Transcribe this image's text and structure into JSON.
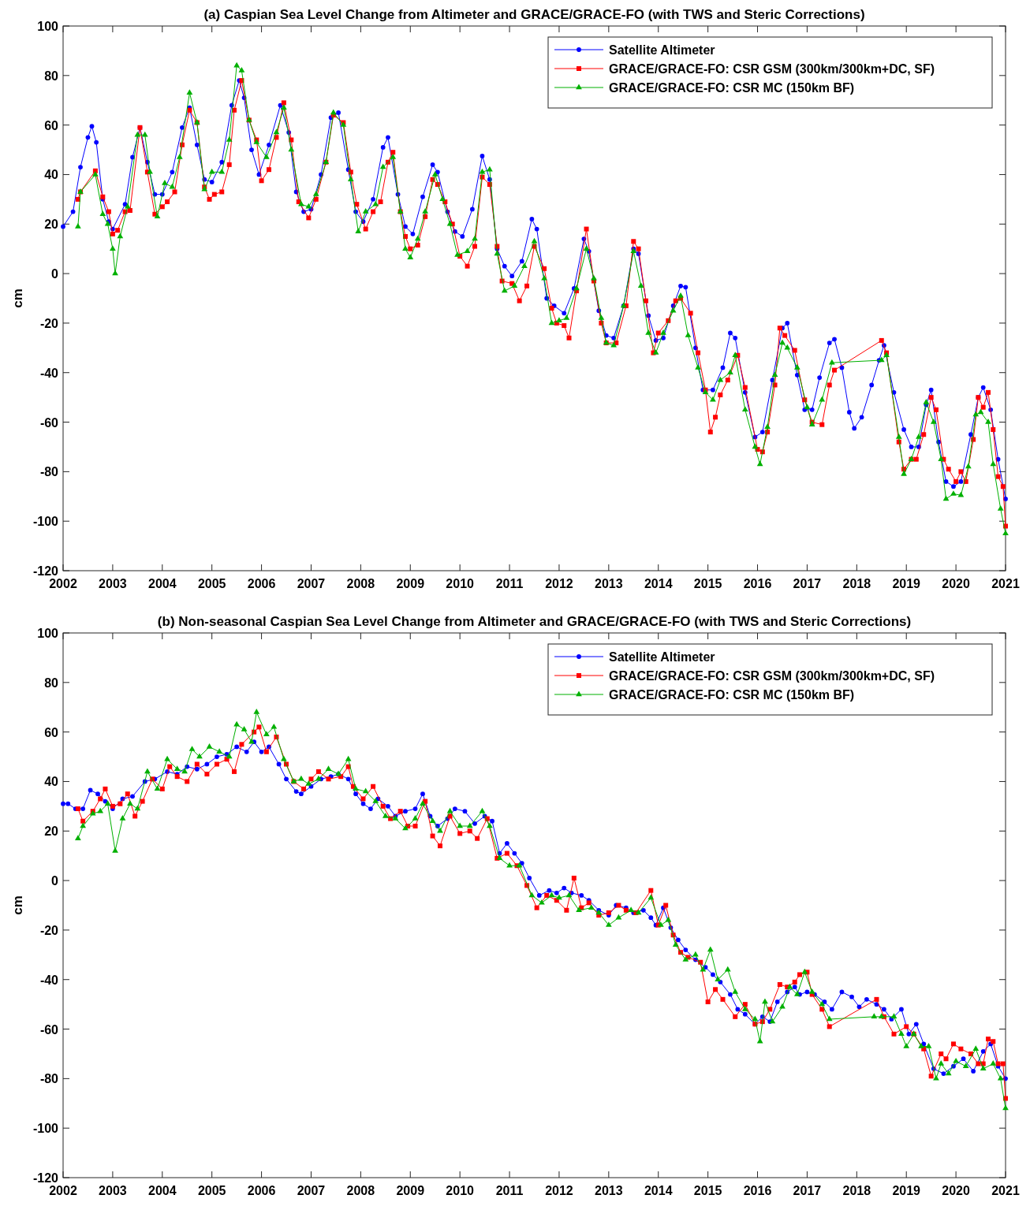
{
  "chart_data": [
    {
      "type": "line",
      "title": "(a) Caspian Sea Level Change from Altimeter and GRACE/GRACE-FO (with TWS and Steric Corrections)",
      "ylabel": "cm",
      "xlim": [
        2002,
        2021
      ],
      "xticks": [
        2002,
        2003,
        2004,
        2005,
        2006,
        2007,
        2008,
        2009,
        2010,
        2011,
        2012,
        2013,
        2014,
        2015,
        2016,
        2017,
        2018,
        2019,
        2020,
        2021
      ],
      "ylim": [
        -120,
        100
      ],
      "yticks": [
        -120,
        -100,
        -80,
        -60,
        -40,
        -20,
        0,
        20,
        40,
        60,
        80,
        100
      ],
      "grid": false,
      "legend": "top right",
      "line_style": "solid",
      "series": [
        {
          "name": "Satellite Altimeter",
          "color": "#0000ff",
          "marker": "circle",
          "x": [
            2002.0,
            2002.2,
            2002.35,
            2002.5,
            2002.58,
            2002.67,
            2002.8,
            2002.92,
            2003.0,
            2003.25,
            2003.4,
            2003.55,
            2003.7,
            2003.85,
            2004.0,
            2004.2,
            2004.4,
            2004.55,
            2004.7,
            2004.85,
            2005.0,
            2005.2,
            2005.4,
            2005.55,
            2005.65,
            2005.8,
            2005.95,
            2006.15,
            2006.38,
            2006.55,
            2006.7,
            2006.85,
            2007.0,
            2007.2,
            2007.4,
            2007.55,
            2007.75,
            2007.9,
            2008.05,
            2008.25,
            2008.45,
            2008.55,
            2008.75,
            2008.9,
            2009.05,
            2009.25,
            2009.45,
            2009.55,
            2009.75,
            2009.9,
            2010.05,
            2010.25,
            2010.45,
            2010.6,
            2010.75,
            2010.9,
            2011.05,
            2011.25,
            2011.45,
            2011.55,
            2011.75,
            2011.9,
            2012.1,
            2012.3,
            2012.5,
            2012.6,
            2012.8,
            2012.95,
            2013.1,
            2013.3,
            2013.5,
            2013.6,
            2013.8,
            2013.95,
            2014.1,
            2014.3,
            2014.45,
            2014.55,
            2014.75,
            2014.9,
            2015.1,
            2015.3,
            2015.45,
            2015.55,
            2015.75,
            2015.95,
            2016.1,
            2016.3,
            2016.5,
            2016.6,
            2016.8,
            2016.95,
            2017.1,
            2017.25,
            2017.45,
            2017.55,
            2017.7,
            2017.85,
            2017.95,
            2018.1,
            2018.3,
            2018.45,
            2018.55,
            2018.75,
            2018.95,
            2019.1,
            2019.25,
            2019.4,
            2019.5,
            2019.65,
            2019.8,
            2019.95,
            2020.1,
            2020.3,
            2020.45,
            2020.55,
            2020.7,
            2020.85,
            2021.0
          ],
          "values": [
            19,
            25,
            43,
            55,
            59.5,
            53,
            30,
            21,
            18,
            28,
            47,
            59,
            45,
            32,
            32,
            41,
            59,
            67,
            52,
            38,
            37,
            45,
            68,
            78,
            71,
            50,
            40,
            52,
            68,
            57,
            33,
            25,
            26,
            40,
            63,
            65,
            42,
            25,
            21,
            30,
            51,
            55,
            32,
            19,
            16,
            31,
            44,
            41,
            25,
            17,
            15,
            26,
            47.5,
            38,
            10,
            3,
            -1,
            5,
            22,
            18,
            -10,
            -13,
            -16,
            -6,
            14,
            9,
            -15,
            -25,
            -26,
            -13,
            10,
            8,
            -17,
            -27,
            -26,
            -13,
            -5,
            -5.5,
            -30,
            -47,
            -47,
            -38,
            -24,
            -26,
            -48,
            -66,
            -64,
            -43,
            -22,
            -20,
            -41,
            -55,
            -55,
            -42,
            -28,
            -26.5,
            -38,
            -56,
            -62.5,
            -58,
            -45,
            -35,
            -29,
            -48,
            -63,
            -70,
            -70,
            -53,
            -47,
            -68,
            -84,
            -86,
            -84,
            -65,
            -50,
            -46,
            -55,
            -75,
            -91
          ]
        },
        {
          "name": "GRACE/GRACE-FO: CSR GSM (300km/300km+DC, SF)",
          "color": "#ff0000",
          "marker": "square",
          "x": [
            2002.3,
            2002.35,
            2002.65,
            2002.8,
            2002.92,
            2003.0,
            2003.1,
            2003.25,
            2003.35,
            2003.55,
            2003.7,
            2003.85,
            2004.0,
            2004.1,
            2004.25,
            2004.4,
            2004.55,
            2004.7,
            2004.85,
            2004.95,
            2005.05,
            2005.2,
            2005.35,
            2005.45,
            2005.6,
            2005.75,
            2005.9,
            2006.0,
            2006.15,
            2006.3,
            2006.45,
            2006.6,
            2006.75,
            2006.95,
            2007.1,
            2007.3,
            2007.45,
            2007.65,
            2007.8,
            2007.92,
            2008.1,
            2008.25,
            2008.4,
            2008.55,
            2008.65,
            2008.8,
            2008.9,
            2009.0,
            2009.15,
            2009.3,
            2009.45,
            2009.55,
            2009.7,
            2009.85,
            2010.0,
            2010.15,
            2010.3,
            2010.45,
            2010.6,
            2010.75,
            2010.85,
            2011.05,
            2011.2,
            2011.35,
            2011.5,
            2011.7,
            2011.85,
            2011.95,
            2012.1,
            2012.2,
            2012.35,
            2012.55,
            2012.7,
            2012.85,
            2012.95,
            2013.15,
            2013.35,
            2013.5,
            2013.6,
            2013.75,
            2013.9,
            2014.0,
            2014.2,
            2014.35,
            2014.45,
            2014.65,
            2014.8,
            2014.95,
            2015.05,
            2015.15,
            2015.25,
            2015.4,
            2015.6,
            2015.75,
            2016.0,
            2016.1,
            2016.2,
            2016.35,
            2016.45,
            2016.55,
            2016.75,
            2016.95,
            2017.1,
            2017.3,
            2017.45,
            2017.55,
            2018.5,
            2018.6,
            2018.85,
            2018.95,
            2019.1,
            2019.2,
            2019.35,
            2019.5,
            2019.6,
            2019.75,
            2019.85,
            2020.0,
            2020.1,
            2020.2,
            2020.35,
            2020.45,
            2020.55,
            2020.65,
            2020.75,
            2020.85,
            2020.95,
            2021.0
          ],
          "values": [
            30,
            33,
            41.5,
            31,
            25,
            16,
            17.5,
            25,
            25.5,
            59,
            41,
            24,
            27,
            29,
            33,
            52,
            66,
            61,
            35,
            30,
            32,
            33,
            44,
            66,
            78,
            62,
            54,
            37.5,
            42,
            55,
            69,
            54,
            29,
            22.5,
            30,
            45,
            64,
            61,
            41,
            28,
            18,
            25,
            29,
            45,
            49,
            25,
            15,
            10,
            11.5,
            23,
            38,
            36,
            29,
            20,
            7,
            3,
            11,
            39,
            36,
            11,
            -3,
            -4,
            -11,
            -5,
            11,
            2,
            -14,
            -20,
            -21,
            -26,
            -7,
            18,
            -3,
            -20,
            -28,
            -28,
            -13,
            13,
            10,
            -11,
            -32,
            -24,
            -19,
            -11,
            -10,
            -16,
            -32,
            -47,
            -64,
            -58,
            -49,
            -43,
            -33,
            -46,
            -71,
            -72,
            -64,
            -45,
            -22,
            -25,
            -31,
            -51,
            -60,
            -61,
            -45,
            -39,
            -27,
            -32,
            -68,
            -79,
            -75,
            -75,
            -65,
            -50,
            -55,
            -75,
            -79,
            -84,
            -80,
            -84,
            -67,
            -50,
            -54,
            -48,
            -63,
            -82,
            -86,
            -102
          ]
        },
        {
          "name": "GRACE/GRACE-FO: CSR MC (150km BF)",
          "color": "#00b000",
          "marker": "triangle",
          "x": [
            2002.3,
            2002.35,
            2002.65,
            2002.8,
            2002.9,
            2003.0,
            2003.05,
            2003.15,
            2003.3,
            2003.5,
            2003.65,
            2003.75,
            2003.9,
            2004.05,
            2004.2,
            2004.35,
            2004.55,
            2004.7,
            2004.85,
            2005.0,
            2005.2,
            2005.35,
            2005.5,
            2005.6,
            2005.75,
            2005.9,
            2006.1,
            2006.3,
            2006.45,
            2006.6,
            2006.8,
            2006.95,
            2007.1,
            2007.3,
            2007.45,
            2007.65,
            2007.8,
            2007.95,
            2008.1,
            2008.3,
            2008.45,
            2008.65,
            2008.8,
            2008.9,
            2009.0,
            2009.15,
            2009.3,
            2009.5,
            2009.65,
            2009.8,
            2009.95,
            2010.15,
            2010.3,
            2010.45,
            2010.6,
            2010.75,
            2010.9,
            2011.1,
            2011.3,
            2011.5,
            2011.7,
            2011.85,
            2012.0,
            2012.15,
            2012.35,
            2012.55,
            2012.7,
            2012.85,
            2012.95,
            2013.1,
            2013.3,
            2013.5,
            2013.65,
            2013.8,
            2013.95,
            2014.1,
            2014.3,
            2014.45,
            2014.6,
            2014.8,
            2014.95,
            2015.1,
            2015.25,
            2015.45,
            2015.55,
            2015.75,
            2015.95,
            2016.05,
            2016.2,
            2016.35,
            2016.5,
            2016.6,
            2016.8,
            2017.0,
            2017.1,
            2017.3,
            2017.5,
            2018.5,
            2018.6,
            2018.85,
            2018.95,
            2019.1,
            2019.25,
            2019.4,
            2019.55,
            2019.7,
            2019.8,
            2019.95,
            2020.1,
            2020.25,
            2020.4,
            2020.5,
            2020.65,
            2020.75,
            2020.9,
            2021.0
          ],
          "values": [
            19,
            33,
            40,
            24,
            20,
            10,
            0,
            15,
            27,
            56,
            56,
            41,
            23,
            36.5,
            35,
            47,
            73,
            61,
            34,
            41,
            41,
            54,
            84,
            82,
            62,
            53,
            47,
            57,
            67,
            50,
            28,
            27,
            32,
            45,
            65,
            60,
            38,
            17,
            25,
            28,
            43,
            47,
            25,
            10,
            6.5,
            14,
            25,
            40,
            30,
            20,
            7.5,
            9,
            14,
            41,
            42,
            8,
            -7,
            -5,
            3,
            13,
            -2,
            -20,
            -19,
            -18,
            -6,
            10,
            -2,
            -18,
            -28,
            -29,
            -13,
            9,
            -5,
            -24,
            -32,
            -24,
            -15,
            -9,
            -25,
            -38,
            -48,
            -51,
            -43,
            -40,
            -33,
            -55,
            -70,
            -77,
            -62,
            -41,
            -28,
            -30,
            -38,
            -54,
            -61,
            -51,
            -36,
            -35,
            -33,
            -66,
            -81,
            -75,
            -66,
            -52,
            -60,
            -75,
            -91,
            -89,
            -89.5,
            -78,
            -57,
            -56,
            -60,
            -77,
            -95,
            -105
          ]
        }
      ]
    },
    {
      "type": "line",
      "title": "(b) Non-seasonal Caspian Sea Level Change from Altimeter and GRACE/GRACE-FO (with TWS and Steric Corrections)",
      "ylabel": "cm",
      "xlim": [
        2002,
        2021
      ],
      "xticks": [
        2002,
        2003,
        2004,
        2005,
        2006,
        2007,
        2008,
        2009,
        2010,
        2011,
        2012,
        2013,
        2014,
        2015,
        2016,
        2017,
        2018,
        2019,
        2020,
        2021
      ],
      "ylim": [
        -120,
        100
      ],
      "yticks": [
        -120,
        -100,
        -80,
        -60,
        -40,
        -20,
        0,
        20,
        40,
        60,
        80,
        100
      ],
      "grid": false,
      "legend": "top right",
      "line_style": "solid",
      "series": [
        {
          "name": "Satellite Altimeter",
          "color": "#0000ff",
          "marker": "circle",
          "x": [
            2002.0,
            2002.1,
            2002.25,
            2002.4,
            2002.55,
            2002.7,
            2002.85,
            2003.0,
            2003.2,
            2003.4,
            2003.65,
            2003.85,
            2004.1,
            2004.3,
            2004.5,
            2004.7,
            2004.9,
            2005.1,
            2005.3,
            2005.5,
            2005.7,
            2005.85,
            2006.0,
            2006.15,
            2006.35,
            2006.5,
            2006.7,
            2006.8,
            2007.0,
            2007.2,
            2007.4,
            2007.55,
            2007.75,
            2007.9,
            2008.05,
            2008.2,
            2008.35,
            2008.55,
            2008.7,
            2008.9,
            2009.1,
            2009.25,
            2009.4,
            2009.55,
            2009.75,
            2009.9,
            2010.1,
            2010.3,
            2010.5,
            2010.65,
            2010.8,
            2010.95,
            2011.1,
            2011.25,
            2011.4,
            2011.6,
            2011.8,
            2011.95,
            2012.1,
            2012.25,
            2012.45,
            2012.6,
            2012.8,
            2013.0,
            2013.15,
            2013.35,
            2013.5,
            2013.7,
            2013.85,
            2013.95,
            2014.1,
            2014.25,
            2014.4,
            2014.55,
            2014.75,
            2014.95,
            2015.1,
            2015.25,
            2015.45,
            2015.6,
            2015.75,
            2015.95,
            2016.1,
            2016.25,
            2016.4,
            2016.6,
            2016.75,
            2016.85,
            2017.0,
            2017.15,
            2017.35,
            2017.5,
            2017.7,
            2017.9,
            2018.05,
            2018.2,
            2018.4,
            2018.55,
            2018.7,
            2018.9,
            2019.05,
            2019.2,
            2019.35,
            2019.55,
            2019.75,
            2019.95,
            2020.15,
            2020.35,
            2020.55,
            2020.7,
            2020.85,
            2021.0
          ],
          "values": [
            31,
            31,
            29,
            29,
            36.5,
            35,
            32,
            29,
            33,
            34,
            40,
            41,
            44,
            43,
            46,
            45,
            47,
            50,
            51,
            54,
            52,
            56,
            52,
            54,
            47,
            41,
            36,
            35,
            38,
            41,
            42,
            43,
            41,
            35,
            31,
            29,
            33,
            30,
            26,
            28,
            29,
            35,
            26,
            22,
            25,
            29,
            28,
            23,
            26,
            24,
            11,
            15,
            11,
            7,
            1,
            -6,
            -4,
            -5,
            -3,
            -5,
            -6,
            -8,
            -12,
            -14,
            -10,
            -11,
            -13,
            -12,
            -15,
            -18,
            -11,
            -19,
            -24,
            -28,
            -32,
            -35,
            -38,
            -41,
            -46,
            -52,
            -54,
            -58,
            -55,
            -57,
            -49,
            -45,
            -43,
            -46,
            -45,
            -46,
            -49,
            -52,
            -45,
            -47,
            -51,
            -48,
            -50,
            -52,
            -56,
            -52,
            -62,
            -58,
            -66,
            -76,
            -78,
            -75,
            -72,
            -77,
            -69,
            -66,
            -75,
            -80
          ]
        },
        {
          "name": "GRACE/GRACE-FO: CSR GSM (300km/300km+DC, SF)",
          "color": "#ff0000",
          "marker": "square",
          "x": [
            2002.3,
            2002.4,
            2002.6,
            2002.75,
            2002.85,
            2003.0,
            2003.15,
            2003.3,
            2003.45,
            2003.6,
            2003.8,
            2004.0,
            2004.15,
            2004.3,
            2004.5,
            2004.7,
            2004.9,
            2005.1,
            2005.3,
            2005.45,
            2005.6,
            2005.85,
            2005.95,
            2006.1,
            2006.3,
            2006.5,
            2006.65,
            2006.85,
            2007.0,
            2007.15,
            2007.35,
            2007.6,
            2007.75,
            2007.85,
            2008.05,
            2008.25,
            2008.45,
            2008.6,
            2008.8,
            2008.95,
            2009.1,
            2009.3,
            2009.45,
            2009.6,
            2009.8,
            2010.0,
            2010.2,
            2010.35,
            2010.55,
            2010.75,
            2010.95,
            2011.15,
            2011.35,
            2011.55,
            2011.75,
            2011.95,
            2012.15,
            2012.3,
            2012.45,
            2012.6,
            2012.8,
            2013.0,
            2013.2,
            2013.35,
            2013.55,
            2013.85,
            2014.0,
            2014.15,
            2014.3,
            2014.45,
            2014.6,
            2014.85,
            2015.0,
            2015.15,
            2015.3,
            2015.55,
            2015.75,
            2015.95,
            2016.1,
            2016.25,
            2016.45,
            2016.6,
            2016.75,
            2016.85,
            2017.0,
            2017.1,
            2017.3,
            2017.45,
            2018.4,
            2018.55,
            2018.75,
            2019.0,
            2019.15,
            2019.35,
            2019.5,
            2019.7,
            2019.8,
            2019.95,
            2020.1,
            2020.3,
            2020.45,
            2020.55,
            2020.65,
            2020.75,
            2020.85,
            2020.95,
            2021.0
          ],
          "values": [
            29,
            24,
            28,
            33,
            37,
            30,
            31,
            35,
            26,
            32,
            41,
            37,
            46,
            42,
            40,
            47,
            43,
            47,
            49,
            44,
            55,
            60,
            62,
            52,
            58,
            47,
            40,
            37,
            41,
            44,
            41,
            42,
            46,
            38,
            33,
            38,
            30,
            25,
            28,
            22,
            22,
            32,
            18,
            14,
            26,
            19,
            20,
            17,
            25,
            9,
            11,
            6,
            -2,
            -11,
            -6,
            -8,
            -12,
            1,
            -11,
            -9,
            -14,
            -13,
            -10,
            -12,
            -13,
            -4,
            -18,
            -10,
            -22,
            -29,
            -31,
            -33,
            -49,
            -44,
            -48,
            -55,
            -50,
            -58,
            -57,
            -52,
            -42,
            -43,
            -41,
            -38,
            -37,
            -46,
            -52,
            -59,
            -48,
            -55,
            -62,
            -59,
            -62,
            -68,
            -79,
            -70,
            -72,
            -66,
            -68,
            -70,
            -74,
            -74,
            -64,
            -65,
            -74,
            -74,
            -88
          ]
        },
        {
          "name": "GRACE/GRACE-FO: CSR MC (150km BF)",
          "color": "#00b000",
          "marker": "triangle",
          "x": [
            2002.3,
            2002.4,
            2002.6,
            2002.75,
            2002.9,
            2003.05,
            2003.2,
            2003.35,
            2003.5,
            2003.7,
            2003.9,
            2004.1,
            2004.3,
            2004.45,
            2004.6,
            2004.75,
            2004.95,
            2005.15,
            2005.35,
            2005.5,
            2005.65,
            2005.8,
            2005.9,
            2006.1,
            2006.25,
            2006.45,
            2006.65,
            2006.8,
            2006.95,
            2007.15,
            2007.35,
            2007.55,
            2007.75,
            2007.9,
            2008.1,
            2008.3,
            2008.5,
            2008.7,
            2008.9,
            2009.1,
            2009.25,
            2009.45,
            2009.6,
            2009.8,
            2010.0,
            2010.2,
            2010.45,
            2010.6,
            2010.8,
            2011.0,
            2011.2,
            2011.45,
            2011.65,
            2011.85,
            2012.0,
            2012.2,
            2012.4,
            2012.65,
            2012.8,
            2013.0,
            2013.2,
            2013.45,
            2013.6,
            2013.85,
            2014.05,
            2014.2,
            2014.35,
            2014.55,
            2014.75,
            2014.9,
            2015.05,
            2015.2,
            2015.4,
            2015.55,
            2015.75,
            2015.95,
            2016.05,
            2016.15,
            2016.3,
            2016.5,
            2016.65,
            2016.8,
            2016.95,
            2017.1,
            2017.3,
            2017.45,
            2018.35,
            2018.5,
            2018.75,
            2018.9,
            2019.0,
            2019.15,
            2019.3,
            2019.45,
            2019.6,
            2019.7,
            2019.85,
            2020.0,
            2020.2,
            2020.4,
            2020.55,
            2020.75,
            2020.9,
            2021.0
          ],
          "values": [
            17,
            22,
            27,
            28,
            31,
            12,
            25,
            31,
            29,
            44,
            37,
            49,
            45,
            44,
            53,
            50,
            54,
            52,
            50,
            63,
            61,
            56,
            68,
            59,
            62,
            49,
            40,
            41,
            39,
            41,
            45,
            43,
            49,
            37,
            36,
            32,
            26,
            25,
            21,
            25,
            31,
            24,
            20,
            28,
            22,
            22,
            28,
            22,
            9,
            6,
            6,
            -6,
            -9,
            -6,
            -7,
            -6,
            -12,
            -11,
            -13,
            -18,
            -15,
            -12,
            -13,
            -7,
            -18,
            -16,
            -26,
            -32,
            -30,
            -36,
            -28,
            -40,
            -36,
            -45,
            -52,
            -56,
            -65,
            -49,
            -57,
            -51,
            -43,
            -46,
            -37,
            -45,
            -50,
            -56,
            -55,
            -55,
            -55,
            -62,
            -67,
            -62,
            -67,
            -67,
            -80,
            -74,
            -78,
            -73,
            -75,
            -68,
            -76,
            -74,
            -80,
            -92
          ]
        }
      ]
    }
  ]
}
